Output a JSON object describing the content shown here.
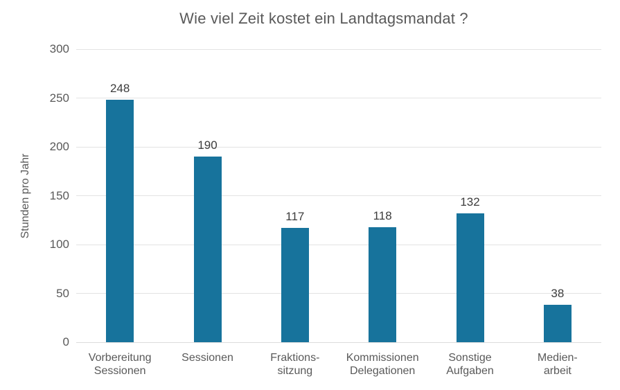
{
  "title": "Wie viel Zeit kostet ein Landtagsmandat ?",
  "chart_data": {
    "type": "bar",
    "title": "Wie viel Zeit kostet ein Landtagsmandat ?",
    "xlabel": "",
    "ylabel": "Stunden pro Jahr",
    "categories": [
      [
        "Vorbereitung",
        "Sessionen"
      ],
      [
        "Sessionen"
      ],
      [
        "Fraktions-",
        "sitzung"
      ],
      [
        "Kommissionen",
        "Delegationen"
      ],
      [
        "Sonstige",
        "Aufgaben"
      ],
      [
        "Medien-",
        "arbeit"
      ]
    ],
    "values": [
      248,
      190,
      117,
      118,
      132,
      38
    ],
    "data_labels": [
      "248",
      "190",
      "117",
      "118",
      "132",
      "38"
    ],
    "ylim": [
      0,
      300
    ],
    "yticks": [
      0,
      50,
      100,
      150,
      200,
      250,
      300
    ],
    "grid": "horizontal-only",
    "legend": "none",
    "bar_color": "#17739c",
    "gridline_color": "#e3e3e3",
    "text_color": "#595959",
    "value_label_color": "#3c3c3c"
  }
}
